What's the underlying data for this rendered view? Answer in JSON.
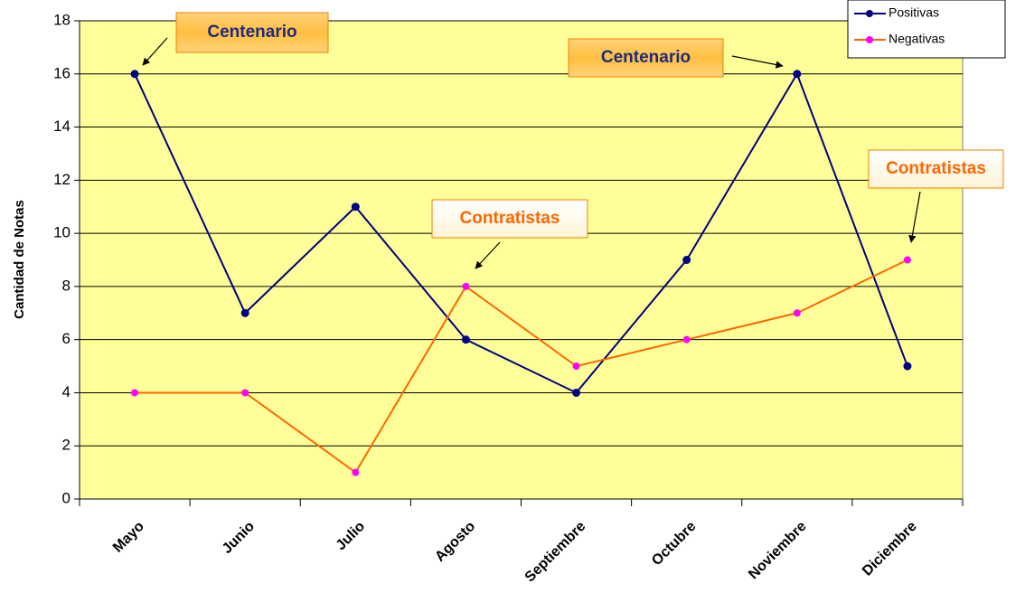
{
  "chart_data": {
    "type": "line",
    "y_label": "Cantidad de Notas",
    "categories": [
      "Mayo",
      "Junio",
      "Julio",
      "Agosto",
      "Septiembre",
      "Octubre",
      "Noviembre",
      "Diciembre"
    ],
    "series": [
      {
        "name": "Positivas",
        "color": "#000080",
        "marker_color": "#000080",
        "values": [
          16,
          7,
          11,
          6,
          4,
          9,
          16,
          5
        ]
      },
      {
        "name": "Negativas",
        "color": "#ff6600",
        "marker_color": "#ff00ff",
        "values": [
          4,
          4,
          1,
          8,
          5,
          6,
          7,
          9
        ]
      }
    ],
    "ylim": [
      0,
      18
    ],
    "yticks": [
      0,
      2,
      4,
      6,
      8,
      10,
      12,
      14,
      16,
      18
    ],
    "grid": true,
    "legend": "top-right",
    "plot_background": "#ffff99",
    "annotations": [
      "Centenario",
      "Centenario",
      "Contratistas",
      "Contratistas"
    ]
  }
}
